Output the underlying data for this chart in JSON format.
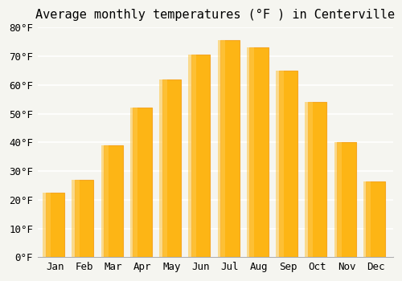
{
  "title": "Average monthly temperatures (°F ) in Centerville",
  "months": [
    "Jan",
    "Feb",
    "Mar",
    "Apr",
    "May",
    "Jun",
    "Jul",
    "Aug",
    "Sep",
    "Oct",
    "Nov",
    "Dec"
  ],
  "values": [
    22.5,
    27,
    39,
    52,
    62,
    70.5,
    75.5,
    73,
    65,
    54,
    40,
    26.5
  ],
  "bar_color": "#FDB515",
  "bar_edge_color": "#F5A623",
  "ylim": [
    0,
    80
  ],
  "yticks": [
    0,
    10,
    20,
    30,
    40,
    50,
    60,
    70,
    80
  ],
  "ytick_labels": [
    "0°F",
    "10°F",
    "20°F",
    "30°F",
    "40°F",
    "50°F",
    "60°F",
    "70°F",
    "80°F"
  ],
  "background_color": "#f5f5f0",
  "grid_color": "#ffffff",
  "title_fontsize": 11,
  "tick_fontsize": 9,
  "font_family": "monospace"
}
